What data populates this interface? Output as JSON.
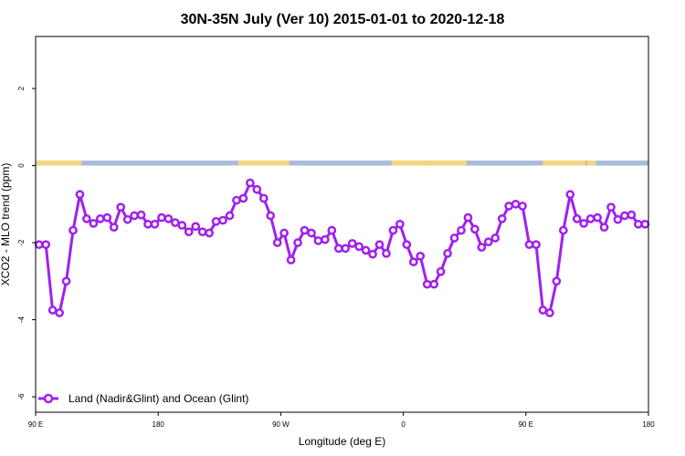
{
  "chart_data": {
    "type": "line",
    "title": "30N-35N July (Ver 10)   2015-01-01 to 2020-12-18",
    "xlabel": "Longitude (deg E)",
    "ylabel": "XCO2 - MLO trend (ppm)",
    "xlim": [
      90,
      450
    ],
    "ylim": [
      -6.4,
      3.35
    ],
    "grid": false,
    "legend_position": "bottom-left",
    "x_ticks": [
      {
        "value": 90,
        "label": "90 E"
      },
      {
        "value": 162,
        "label": "180"
      },
      {
        "value": 234,
        "label": "90 W"
      },
      {
        "value": 306,
        "label": "0"
      },
      {
        "value": 378,
        "label": "90 E"
      },
      {
        "value": 450,
        "label": "180"
      }
    ],
    "y_ticks": [
      {
        "value": 2,
        "label": "2"
      },
      {
        "value": 0,
        "label": "0"
      },
      {
        "value": -2,
        "label": "-2"
      },
      {
        "value": -4,
        "label": "-4"
      },
      {
        "value": -6,
        "label": "-6"
      }
    ],
    "surface_strip": {
      "y_range": [
        0,
        0.13
      ],
      "land_color": "#f5d680",
      "ocean_color": "#a9bbd9",
      "land_segments": [
        [
          90,
          117
        ],
        [
          209,
          239
        ],
        [
          299,
          320
        ],
        [
          320,
          343
        ],
        [
          388,
          413
        ],
        [
          414,
          419
        ]
      ]
    },
    "series": [
      {
        "name": "Land (Nadir&Glint) and Ocean (Glint)",
        "color": "#a020f0",
        "marker": "open-circle",
        "x": [
          92,
          96,
          100,
          104,
          108,
          112,
          116,
          120,
          124,
          128,
          132,
          136,
          140,
          144,
          148,
          152,
          156,
          160,
          164,
          168,
          172,
          176,
          180,
          184,
          188,
          192,
          196,
          200,
          204,
          208,
          212,
          216,
          220,
          224,
          228,
          232,
          236,
          240,
          244,
          248,
          252,
          256,
          260,
          264,
          268,
          272,
          276,
          280,
          284,
          288,
          292,
          296,
          300,
          304,
          308,
          312,
          316,
          320,
          324,
          328,
          332,
          336,
          340,
          344,
          348,
          352,
          356,
          360,
          364,
          368,
          372,
          376,
          380,
          384,
          388,
          392,
          396,
          400,
          404,
          408,
          412,
          416,
          420,
          424,
          428,
          432,
          436,
          440,
          444,
          448
        ],
        "y": [
          -2.05,
          -2.05,
          -3.75,
          -3.82,
          -3.0,
          -1.68,
          -0.75,
          -1.38,
          -1.5,
          -1.38,
          -1.35,
          -1.6,
          -1.08,
          -1.4,
          -1.3,
          -1.28,
          -1.52,
          -1.52,
          -1.35,
          -1.38,
          -1.48,
          -1.55,
          -1.72,
          -1.58,
          -1.72,
          -1.75,
          -1.45,
          -1.42,
          -1.3,
          -0.9,
          -0.85,
          -0.45,
          -0.62,
          -0.85,
          -1.3,
          -2.0,
          -1.75,
          -2.45,
          -2.0,
          -1.68,
          -1.75,
          -1.95,
          -1.92,
          -1.68,
          -2.15,
          -2.15,
          -2.02,
          -2.1,
          -2.2,
          -2.3,
          -2.05,
          -2.28,
          -1.68,
          -1.52,
          -2.05,
          -2.5,
          -2.35,
          -3.08,
          -3.08,
          -2.75,
          -2.28,
          -1.88,
          -1.68,
          -1.35,
          -1.65,
          -2.12,
          -1.98,
          -1.88,
          -1.38,
          -1.05,
          -1.0,
          -1.05,
          -2.05,
          -2.05,
          -3.75,
          -3.82,
          -3.0,
          -1.68,
          -0.75,
          -1.38,
          -1.5,
          -1.38,
          -1.35,
          -1.6,
          -1.08,
          -1.4,
          -1.3,
          -1.28,
          -1.52,
          -1.52
        ]
      }
    ]
  }
}
